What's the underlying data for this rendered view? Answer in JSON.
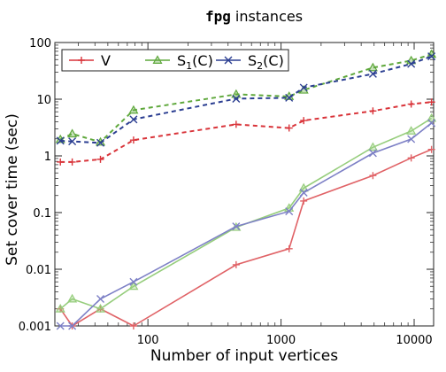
{
  "chart_data": {
    "type": "line",
    "title_mono": "fpg",
    "title_rest": " instances",
    "xlabel": "Number of input vertices",
    "ylabel": "Set cover time (sec)",
    "xscale": "log",
    "yscale": "log",
    "xlim": [
      20,
      14000
    ],
    "ylim": [
      0.001,
      100
    ],
    "xticks": [
      {
        "value": 100,
        "label": "100"
      },
      {
        "value": 1000,
        "label": "1000"
      },
      {
        "value": 10000,
        "label": "10000"
      }
    ],
    "yticks": [
      {
        "value": 0.001,
        "label": "0.001"
      },
      {
        "value": 0.01,
        "label": "0.01"
      },
      {
        "value": 0.1,
        "label": "0.1"
      },
      {
        "value": 1,
        "label": "1"
      },
      {
        "value": 10,
        "label": "10"
      },
      {
        "value": 100,
        "label": "100"
      }
    ],
    "x": [
      22,
      27,
      44,
      78,
      460,
      1150,
      1480,
      4900,
      9500,
      13500
    ],
    "legend": {
      "position": "top-left",
      "box": true
    },
    "groups": [
      {
        "style": "dashed",
        "series": [
          {
            "key": "V",
            "marker": "plus",
            "color": "#d9343a",
            "values": [
              0.78,
              0.78,
              0.87,
              1.9,
              3.6,
              3.1,
              4.2,
              6.2,
              8.2,
              8.9
            ]
          },
          {
            "key": "S1",
            "marker": "triangle",
            "color": "#5fa83c",
            "values": [
              1.95,
              2.45,
              1.75,
              6.4,
              12.2,
              11.2,
              14.5,
              36,
              48,
              62
            ]
          },
          {
            "key": "S2",
            "marker": "x",
            "color": "#2c3f92",
            "values": [
              1.85,
              1.8,
              1.7,
              4.4,
              10.2,
              10.6,
              16,
              28,
              42,
              57
            ]
          }
        ]
      },
      {
        "style": "solid",
        "series": [
          {
            "key": "V",
            "marker": "plus",
            "color": "#e06266",
            "values": [
              0.002,
              0.001,
              0.002,
              0.001,
              0.012,
              0.023,
              0.16,
              0.45,
              0.92,
              1.3
            ]
          },
          {
            "key": "S1",
            "marker": "triangle",
            "color": "#96cd7c",
            "values": [
              0.002,
              0.003,
              0.002,
              0.005,
              0.055,
              0.12,
              0.27,
              1.42,
              2.75,
              4.6
            ]
          },
          {
            "key": "S2",
            "marker": "x",
            "color": "#7d80c6",
            "values": [
              0.001,
              0.001,
              0.003,
              0.006,
              0.057,
              0.105,
              0.225,
              1.12,
              1.98,
              3.8
            ]
          }
        ]
      }
    ],
    "legend_entries": [
      {
        "key": "V",
        "label": "V",
        "marker": "plus",
        "color": "#d9343a"
      },
      {
        "key": "S1",
        "label": "S",
        "sub": "1",
        "suffix": "(C)",
        "marker": "triangle",
        "color": "#5fa83c"
      },
      {
        "key": "S2",
        "label": "S",
        "sub": "2",
        "suffix": "(C)",
        "marker": "x",
        "color": "#2c3f92"
      }
    ]
  }
}
